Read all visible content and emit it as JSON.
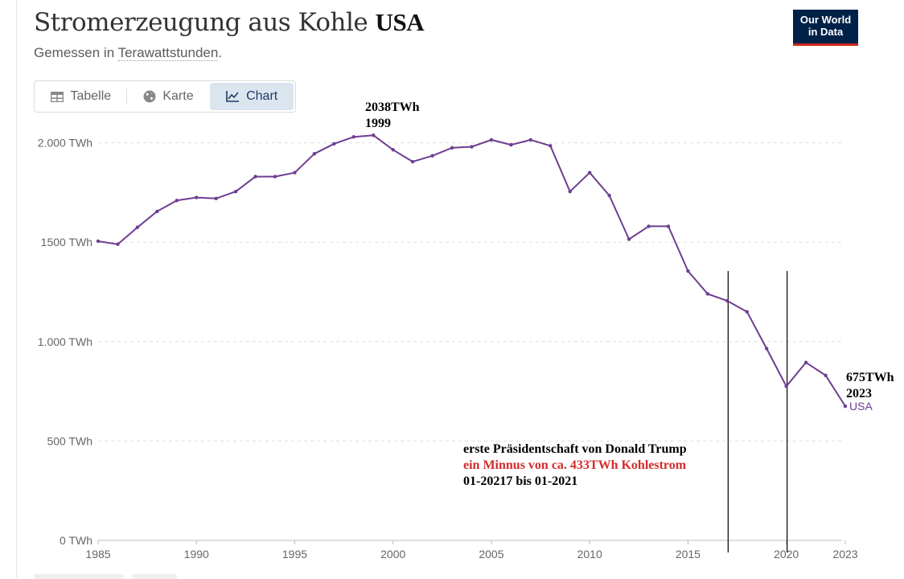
{
  "header": {
    "title": "Stromerzeugung aus Kohle",
    "entity": "USA",
    "subtitle_prefix": "Gemessen in ",
    "subtitle_link": "Terawattstunden",
    "subtitle_suffix": "."
  },
  "logo": {
    "line1": "Our World",
    "line2": "in Data"
  },
  "tabs": [
    {
      "label": "Tabelle",
      "icon": "table-icon",
      "active": false
    },
    {
      "label": "Karte",
      "icon": "globe-icon",
      "active": false
    },
    {
      "label": "Chart",
      "icon": "line-chart-icon",
      "active": true
    }
  ],
  "colors": {
    "series": "#6d3e91",
    "red": "#d42b2b",
    "grid": "#dddddd"
  },
  "chart_data": {
    "type": "line",
    "title": "Stromerzeugung aus Kohle USA",
    "ylabel": "TWh",
    "xlim": [
      1985,
      2023
    ],
    "ylim": [
      0,
      2100
    ],
    "y_ticks": [
      {
        "value": 0,
        "label": "0 TWh"
      },
      {
        "value": 500,
        "label": "500 TWh"
      },
      {
        "value": 1000,
        "label": "1.000 TWh"
      },
      {
        "value": 1500,
        "label": "1500 TWh"
      },
      {
        "value": 2000,
        "label": "2.000 TWh"
      }
    ],
    "x_ticks": [
      {
        "value": 1985,
        "label": "1985"
      },
      {
        "value": 1990,
        "label": "1990"
      },
      {
        "value": 1995,
        "label": "1995"
      },
      {
        "value": 2000,
        "label": "2000"
      },
      {
        "value": 2005,
        "label": "2005"
      },
      {
        "value": 2010,
        "label": "2010"
      },
      {
        "value": 2015,
        "label": "2015"
      },
      {
        "value": 2020,
        "label": "2020"
      },
      {
        "value": 2023,
        "label": "2023"
      }
    ],
    "series": [
      {
        "name": "USA",
        "x": [
          1985,
          1986,
          1987,
          1988,
          1989,
          1990,
          1991,
          1992,
          1993,
          1994,
          1995,
          1996,
          1997,
          1998,
          1999,
          2000,
          2001,
          2002,
          2003,
          2004,
          2005,
          2006,
          2007,
          2008,
          2009,
          2010,
          2011,
          2012,
          2013,
          2014,
          2015,
          2016,
          2017,
          2018,
          2019,
          2020,
          2021,
          2022,
          2023
        ],
        "values": [
          1505,
          1490,
          1575,
          1655,
          1710,
          1725,
          1720,
          1755,
          1830,
          1830,
          1850,
          1945,
          1995,
          2030,
          2038,
          1965,
          1905,
          1935,
          1975,
          1980,
          2015,
          1990,
          2015,
          1985,
          1755,
          1850,
          1735,
          1515,
          1580,
          1580,
          1355,
          1240,
          1205,
          1150,
          965,
          775,
          895,
          830,
          675
        ]
      }
    ],
    "annotations": {
      "peak_value": "2038TWh",
      "peak_year": "1999",
      "end_value": "675TWh",
      "end_year": "2023",
      "series_label": "USA",
      "note_line1": "erste Präsidentschaft von Donald Trump",
      "note_line2": "ein Minnus von ca. 433TWh Kohlestrom",
      "note_line3": "01-20217 bis 01-2021",
      "marker_years": [
        2017,
        2020
      ]
    }
  }
}
